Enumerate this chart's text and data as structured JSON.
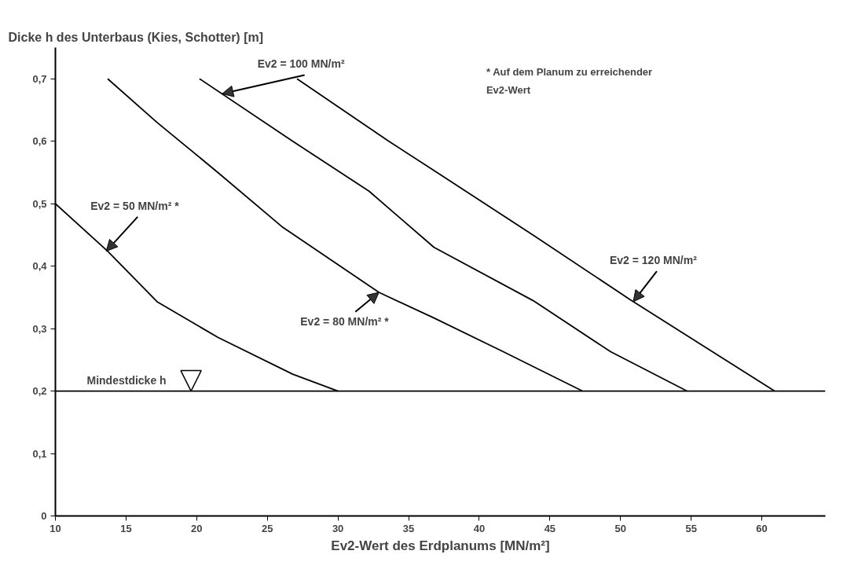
{
  "chart_data": {
    "type": "line",
    "ylabel": "Dicke h des Unterbaus (Kies, Schotter) [m]",
    "xlabel": "Ev2-Wert des Erdplanums [MN/m²]",
    "xlim": [
      10,
      64.5
    ],
    "xticks": [
      10,
      15,
      20,
      25,
      30,
      35,
      40,
      45,
      50,
      55,
      60
    ],
    "ylim": [
      0,
      0.75
    ],
    "yticks": [
      0,
      {
        "value": 0.1,
        "label": "0,1"
      },
      {
        "value": 0.2,
        "label": "0,2"
      },
      {
        "value": 0.3,
        "label": "0,3"
      },
      {
        "value": 0.4,
        "label": "0,4"
      },
      {
        "value": 0.5,
        "label": "0,5"
      },
      {
        "value": 0.6,
        "label": "0,6"
      },
      {
        "value": 0.7,
        "label": "0,7"
      }
    ],
    "grid": false,
    "marker": "none",
    "line_style": "solid",
    "ref_lines": [
      {
        "axis": "y",
        "value": 0.2,
        "label": "Mindestdicke h",
        "color": "#000000"
      }
    ],
    "series": [
      {
        "color": "#000000",
        "x": [
          10,
          13.7,
          17.2,
          21.5,
          26.8,
          30
        ],
        "values": [
          0.5,
          0.424,
          0.343,
          0.286,
          0.227,
          0.2
        ]
      },
      {
        "color": "#000000",
        "x": [
          13.7,
          17.2,
          21.5,
          26.1,
          32.9,
          36.8,
          41.7,
          47.3
        ],
        "values": [
          0.7,
          0.63,
          0.55,
          0.462,
          0.358,
          0.317,
          0.263,
          0.2
        ]
      },
      {
        "color": "#000000",
        "x": [
          20.2,
          26.8,
          32.2,
          36.8,
          43.8,
          49.3,
          54.7
        ],
        "values": [
          0.7,
          0.6,
          0.52,
          0.43,
          0.345,
          0.263,
          0.2
        ]
      },
      {
        "color": "#000000",
        "x": [
          27.1,
          33.6,
          36.8,
          43.8,
          50.7,
          60.9
        ],
        "values": [
          0.7,
          0.6,
          0.553,
          0.45,
          0.346,
          0.2
        ]
      }
    ],
    "annotations": [
      {
        "text": "Ev2 = 50 MN/m² *",
        "x": 13.6,
        "y": 0.424
      },
      {
        "text": "Ev2 = 80 MN/m² *",
        "x": 32.9,
        "y": 0.358
      },
      {
        "text": "Ev2 = 100 MN/m²",
        "x": 21.8,
        "y": 0.676
      },
      {
        "text": "Ev2 = 120 MN/m²",
        "x": 50.9,
        "y": 0.343
      },
      "* Auf dem Planum zu erreichender\nEv2-Wert"
    ]
  }
}
